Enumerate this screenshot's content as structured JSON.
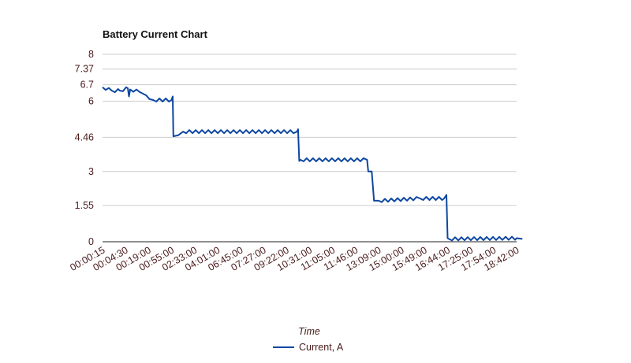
{
  "chart_data": {
    "type": "line",
    "title": "Battery Current Chart",
    "xlabel": "Time",
    "ylabel": "",
    "ylim": [
      0,
      8
    ],
    "y_ticks": [
      0,
      1.55,
      3,
      4.46,
      6,
      6.7,
      7.37,
      8
    ],
    "y_tick_labels": [
      "0",
      "1.55",
      "3",
      "4.46",
      "6",
      "6.7",
      "7.37",
      "8"
    ],
    "grid": true,
    "legend_position": "bottom",
    "x_tick_labels": [
      "00:00:15",
      "00:04:30",
      "00:19:00",
      "00:55:00",
      "02:33:00",
      "04:01:00",
      "06:45:00",
      "07:27:00",
      "09:22:00",
      "10:31:00",
      "11:05:00",
      "11:46:00",
      "13:09:00",
      "15:00:00",
      "15:49:00",
      "16:44:00",
      "17:25:00",
      "17:54:00",
      "18:42:00"
    ],
    "series": [
      {
        "name": "Current, A",
        "color": "#0d47a1",
        "points": [
          [
            0.0,
            6.6
          ],
          [
            0.4,
            6.45
          ],
          [
            0.75,
            6.45
          ],
          [
            1.1,
            6.55
          ],
          [
            1.15,
            6.2
          ],
          [
            1.2,
            6.5
          ],
          [
            1.6,
            6.4
          ],
          [
            1.9,
            6.25
          ],
          [
            2.2,
            6.05
          ],
          [
            3.0,
            6.05
          ],
          [
            3.05,
            6.2
          ],
          [
            3.08,
            4.5
          ],
          [
            3.3,
            4.55
          ],
          [
            3.5,
            4.7
          ],
          [
            8.45,
            4.7
          ],
          [
            8.5,
            4.8
          ],
          [
            8.55,
            3.45
          ],
          [
            8.6,
            3.5
          ],
          [
            11.5,
            3.5
          ],
          [
            11.55,
            3.0
          ],
          [
            11.7,
            3.0
          ],
          [
            11.8,
            1.75
          ],
          [
            12.0,
            1.75
          ],
          [
            13.8,
            1.85
          ],
          [
            14.85,
            1.85
          ],
          [
            14.95,
            2.0
          ],
          [
            15.0,
            0.15
          ],
          [
            15.05,
            0.12
          ],
          [
            18.0,
            0.15
          ],
          [
            18.25,
            0.12
          ]
        ]
      }
    ]
  }
}
